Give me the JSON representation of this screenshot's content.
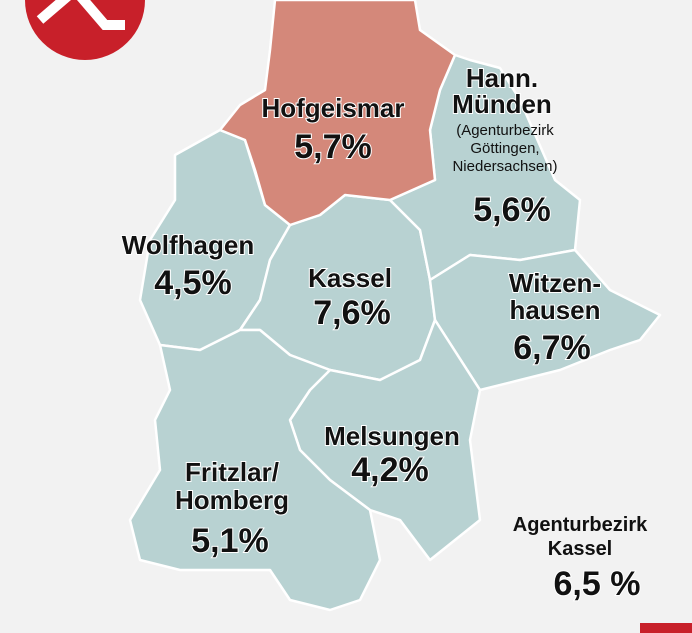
{
  "regions": [
    {
      "lines": [
        "Hofgeismar"
      ],
      "value": "5,7%"
    },
    {
      "lines": [
        "Hann.",
        "Münden"
      ],
      "note": [
        "(Agenturbezirk",
        "Göttingen,",
        "Niedersachsen)"
      ],
      "value": "5,6%"
    },
    {
      "lines": [
        "Wolfhagen"
      ],
      "value": "4,5%"
    },
    {
      "lines": [
        "Kassel"
      ],
      "value": "7,6%"
    },
    {
      "lines": [
        "Witzen-",
        "hausen"
      ],
      "value": "6,7%"
    },
    {
      "lines": [
        "Melsungen"
      ],
      "value": "4,2%"
    },
    {
      "lines": [
        "Fritzlar/",
        "Homberg"
      ],
      "value": "5,1%"
    }
  ],
  "summary": {
    "lines": [
      "Agenturbezirk",
      "Kassel"
    ],
    "value": "6,5 %"
  }
}
